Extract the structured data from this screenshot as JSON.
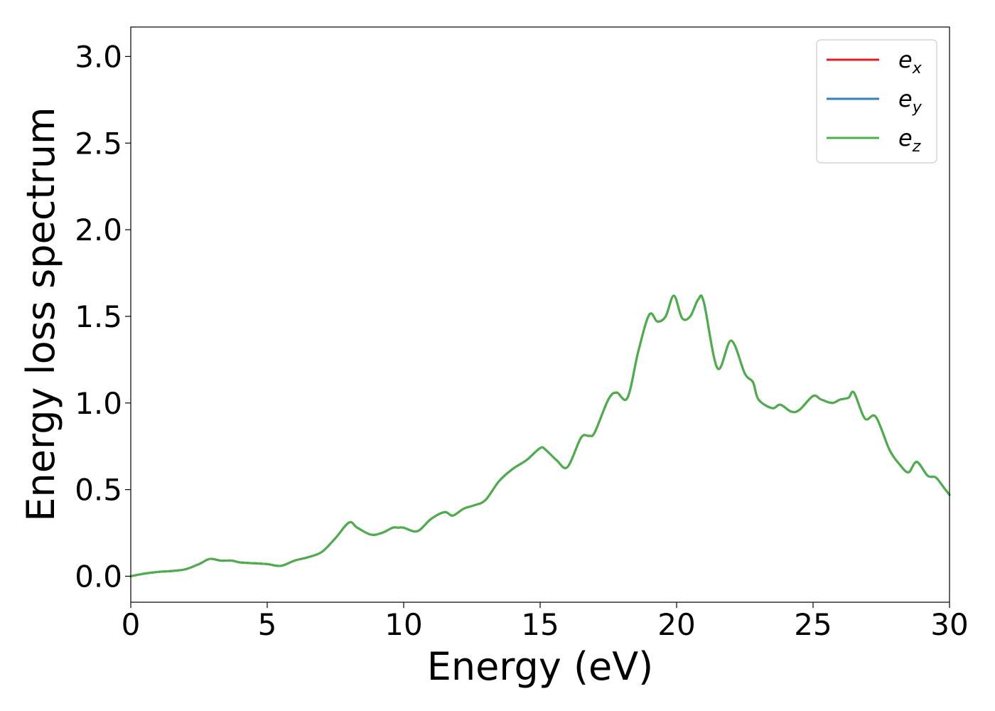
{
  "chart_data": {
    "type": "line",
    "xlabel": "Energy (eV)",
    "ylabel": "Energy loss spectrum",
    "xlim": [
      0,
      30
    ],
    "ylim": [
      -0.15,
      3.17
    ],
    "xticks": [
      0,
      5,
      10,
      15,
      20,
      25,
      30
    ],
    "xtick_labels": [
      "0",
      "5",
      "10",
      "15",
      "20",
      "25",
      "30"
    ],
    "yticks": [
      0.0,
      0.5,
      1.0,
      1.5,
      2.0,
      2.5,
      3.0
    ],
    "ytick_labels": [
      "0.0",
      "0.5",
      "1.0",
      "1.5",
      "2.0",
      "2.5",
      "3.0"
    ],
    "grid": false,
    "legend_position": "top-right",
    "series": [
      {
        "name": "e",
        "subscript": "x",
        "color": "#e41a1c",
        "x": [
          0,
          0.5,
          1,
          1.5,
          2,
          2.5,
          2.9,
          3.3,
          3.7,
          4,
          4.5,
          5,
          5.5,
          6,
          6.5,
          7,
          7.5,
          8,
          8.3,
          8.8,
          9.2,
          9.6,
          9.8,
          10,
          10.5,
          11,
          11.5,
          11.8,
          12.2,
          12.6,
          13,
          13.5,
          14,
          14.5,
          15,
          15.2,
          15.6,
          16,
          16.5,
          16.8,
          17,
          17.5,
          17.8,
          18.2,
          18.6,
          19,
          19.3,
          19.6,
          19.9,
          20.2,
          20.5,
          20.8,
          21,
          21.5,
          22,
          22.5,
          22.8,
          23,
          23.5,
          23.8,
          24.2,
          24.5,
          25,
          25.3,
          25.7,
          26,
          26.3,
          26.5,
          26.9,
          27.3,
          27.8,
          28.2,
          28.5,
          28.8,
          29.2,
          29.5,
          29.8,
          30
        ],
        "y": [
          0,
          0.015,
          0.025,
          0.03,
          0.04,
          0.07,
          0.1,
          0.09,
          0.09,
          0.08,
          0.075,
          0.07,
          0.06,
          0.09,
          0.11,
          0.14,
          0.22,
          0.31,
          0.28,
          0.24,
          0.25,
          0.28,
          0.28,
          0.28,
          0.26,
          0.33,
          0.37,
          0.35,
          0.39,
          0.41,
          0.44,
          0.55,
          0.62,
          0.67,
          0.74,
          0.73,
          0.67,
          0.63,
          0.8,
          0.81,
          0.83,
          1.02,
          1.06,
          1.03,
          1.3,
          1.51,
          1.47,
          1.5,
          1.62,
          1.49,
          1.5,
          1.6,
          1.58,
          1.2,
          1.36,
          1.17,
          1.12,
          1.02,
          0.97,
          0.99,
          0.95,
          0.96,
          1.04,
          1.02,
          1.0,
          1.02,
          1.03,
          1.06,
          0.91,
          0.92,
          0.73,
          0.64,
          0.6,
          0.66,
          0.58,
          0.57,
          0.51,
          0.47
        ]
      },
      {
        "name": "e",
        "subscript": "y",
        "color": "#377eb8",
        "x": [
          0,
          0.5,
          1,
          1.5,
          2,
          2.5,
          2.9,
          3.3,
          3.7,
          4,
          4.5,
          5,
          5.5,
          6,
          6.5,
          7,
          7.5,
          8,
          8.3,
          8.8,
          9.2,
          9.6,
          9.8,
          10,
          10.5,
          11,
          11.5,
          11.8,
          12.2,
          12.6,
          13,
          13.5,
          14,
          14.5,
          15,
          15.2,
          15.6,
          16,
          16.5,
          16.8,
          17,
          17.5,
          17.8,
          18.2,
          18.6,
          19,
          19.3,
          19.6,
          19.9,
          20.2,
          20.5,
          20.8,
          21,
          21.5,
          22,
          22.5,
          22.8,
          23,
          23.5,
          23.8,
          24.2,
          24.5,
          25,
          25.3,
          25.7,
          26,
          26.3,
          26.5,
          26.9,
          27.3,
          27.8,
          28.2,
          28.5,
          28.8,
          29.2,
          29.5,
          29.8,
          30
        ],
        "y": [
          0,
          0.015,
          0.025,
          0.03,
          0.04,
          0.07,
          0.1,
          0.09,
          0.09,
          0.08,
          0.075,
          0.07,
          0.06,
          0.09,
          0.11,
          0.14,
          0.22,
          0.31,
          0.28,
          0.24,
          0.25,
          0.28,
          0.28,
          0.28,
          0.26,
          0.33,
          0.37,
          0.35,
          0.39,
          0.41,
          0.44,
          0.55,
          0.62,
          0.67,
          0.74,
          0.73,
          0.67,
          0.63,
          0.8,
          0.81,
          0.83,
          1.02,
          1.06,
          1.03,
          1.3,
          1.51,
          1.47,
          1.5,
          1.62,
          1.49,
          1.5,
          1.6,
          1.58,
          1.2,
          1.36,
          1.17,
          1.12,
          1.02,
          0.97,
          0.99,
          0.95,
          0.96,
          1.04,
          1.02,
          1.0,
          1.02,
          1.03,
          1.06,
          0.91,
          0.92,
          0.73,
          0.64,
          0.6,
          0.66,
          0.58,
          0.57,
          0.51,
          0.47
        ]
      },
      {
        "name": "e",
        "subscript": "z",
        "color": "#4daf4a",
        "x": [
          0,
          0.5,
          1,
          1.5,
          2,
          2.5,
          2.9,
          3.3,
          3.7,
          4,
          4.5,
          5,
          5.5,
          6,
          6.5,
          7,
          7.5,
          8,
          8.3,
          8.8,
          9.2,
          9.6,
          9.8,
          10,
          10.5,
          11,
          11.5,
          11.8,
          12.2,
          12.6,
          13,
          13.5,
          14,
          14.5,
          15,
          15.2,
          15.6,
          16,
          16.5,
          16.8,
          17,
          17.5,
          17.8,
          18.2,
          18.6,
          19,
          19.3,
          19.6,
          19.9,
          20.2,
          20.5,
          20.8,
          21,
          21.5,
          22,
          22.5,
          22.8,
          23,
          23.5,
          23.8,
          24.2,
          24.5,
          25,
          25.3,
          25.7,
          26,
          26.3,
          26.5,
          26.9,
          27.3,
          27.8,
          28.2,
          28.5,
          28.8,
          29.2,
          29.5,
          29.8,
          30
        ],
        "y": [
          0,
          0.015,
          0.025,
          0.03,
          0.04,
          0.07,
          0.1,
          0.09,
          0.09,
          0.08,
          0.075,
          0.07,
          0.06,
          0.09,
          0.11,
          0.14,
          0.22,
          0.31,
          0.28,
          0.24,
          0.25,
          0.28,
          0.28,
          0.28,
          0.26,
          0.33,
          0.37,
          0.35,
          0.39,
          0.41,
          0.44,
          0.55,
          0.62,
          0.67,
          0.74,
          0.73,
          0.67,
          0.63,
          0.8,
          0.81,
          0.83,
          1.02,
          1.06,
          1.03,
          1.3,
          1.51,
          1.47,
          1.5,
          1.62,
          1.49,
          1.5,
          1.6,
          1.58,
          1.2,
          1.36,
          1.17,
          1.12,
          1.02,
          0.97,
          0.99,
          0.95,
          0.96,
          1.04,
          1.02,
          1.0,
          1.02,
          1.03,
          1.06,
          0.91,
          0.92,
          0.73,
          0.64,
          0.6,
          0.66,
          0.58,
          0.57,
          0.51,
          0.47
        ]
      }
    ]
  }
}
